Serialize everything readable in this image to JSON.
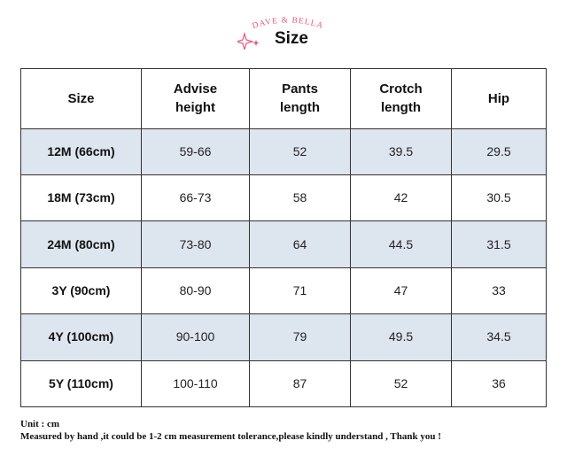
{
  "brand": {
    "name": "DAVE & BELLA",
    "color": "#e8567a"
  },
  "title": "Size",
  "table": {
    "headers": [
      "Size",
      "Advise\nheight",
      "Pants\nlength",
      "Crotch\nlength",
      "Hip"
    ],
    "rows": [
      [
        "12M (66cm)",
        "59-66",
        "52",
        "39.5",
        "29.5"
      ],
      [
        "18M (73cm)",
        "66-73",
        "58",
        "42",
        "30.5"
      ],
      [
        "24M (80cm)",
        "73-80",
        "64",
        "44.5",
        "31.5"
      ],
      [
        "3Y (90cm)",
        "80-90",
        "71",
        "47",
        "33"
      ],
      [
        "4Y (100cm)",
        "90-100",
        "79",
        "49.5",
        "34.5"
      ],
      [
        "5Y (110cm)",
        "100-110",
        "87",
        "52",
        "36"
      ]
    ],
    "shade_color": "#dde5ef"
  },
  "notes": {
    "unit": "Unit : cm",
    "tolerance": "Measured by hand ,it could be 1-2 cm measurement tolerance,please kindly understand , Thank you !"
  },
  "icons": [
    "sparkle-icon"
  ]
}
